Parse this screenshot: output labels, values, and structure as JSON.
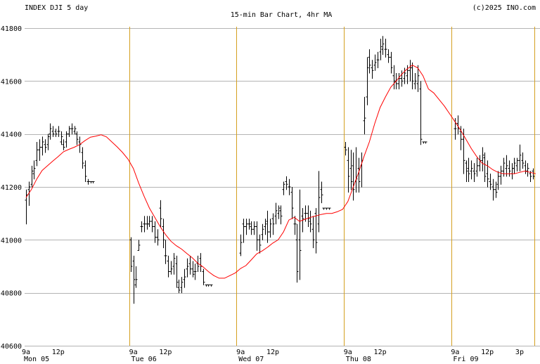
{
  "header": {
    "left": "INDEX DJI 5 day",
    "center": "15-min Bar Chart, 4hr MA",
    "right": "(c)2025 INO.com"
  },
  "colors": {
    "background": "#ffffff",
    "grid": "#b4b4b4",
    "day_separator": "#d4a020",
    "bars": "#000000",
    "moving_average": "#ff0000"
  },
  "chart_data": {
    "type": "bar",
    "subtype": "ohlc",
    "interval": "15-min",
    "ylim": [
      40600,
      41800
    ],
    "y_ticks": [
      40600,
      40800,
      41000,
      41200,
      41400,
      41600,
      41800
    ],
    "grid": true,
    "x_ticks": [
      {
        "label": "9a",
        "day": "Mon 05",
        "pos": 0
      },
      {
        "label": "12p",
        "day": "",
        "pos": 12
      },
      {
        "label": "9a",
        "day": "Tue 06",
        "pos": 40
      },
      {
        "label": "12p",
        "day": "",
        "pos": 52
      },
      {
        "label": "9a",
        "day": "Wed 07",
        "pos": 80
      },
      {
        "label": "12p",
        "day": "",
        "pos": 92
      },
      {
        "label": "9a",
        "day": "Thu 08",
        "pos": 120
      },
      {
        "label": "12p",
        "day": "",
        "pos": 132
      },
      {
        "label": "9a",
        "day": "Fri 09",
        "pos": 160
      },
      {
        "label": "12p",
        "day": "",
        "pos": 172
      },
      {
        "label": "3p",
        "day": "",
        "pos": 184
      }
    ],
    "day_separators": [
      38.5,
      78.5,
      118.5,
      158.5,
      189.5
    ],
    "ohlc": [
      [
        0,
        41150,
        41190,
        41060,
        41170
      ],
      [
        1,
        41190,
        41220,
        41130,
        41200
      ],
      [
        2,
        41210,
        41280,
        41200,
        41260
      ],
      [
        3,
        41250,
        41300,
        41230,
        41270
      ],
      [
        4,
        41300,
        41370,
        41280,
        41340
      ],
      [
        5,
        41340,
        41380,
        41300,
        41350
      ],
      [
        6,
        41350,
        41390,
        41320,
        41370
      ],
      [
        7,
        41360,
        41380,
        41330,
        41350
      ],
      [
        8,
        41360,
        41400,
        41340,
        41390
      ],
      [
        9,
        41400,
        41440,
        41380,
        41420
      ],
      [
        10,
        41410,
        41430,
        41390,
        41400
      ],
      [
        11,
        41410,
        41420,
        41390,
        41400
      ],
      [
        12,
        41410,
        41430,
        41390,
        41410
      ],
      [
        13,
        41370,
        41410,
        41360,
        41390
      ],
      [
        14,
        41360,
        41380,
        41340,
        41350
      ],
      [
        15,
        41370,
        41410,
        41350,
        41400
      ],
      [
        16,
        41400,
        41430,
        41390,
        41420
      ],
      [
        17,
        41420,
        41440,
        41400,
        41420
      ],
      [
        18,
        41410,
        41430,
        41400,
        41420
      ],
      [
        19,
        41400,
        41410,
        41360,
        41380
      ],
      [
        20,
        41370,
        41390,
        41330,
        41360
      ],
      [
        21,
        41330,
        41350,
        41270,
        41290
      ],
      [
        22,
        41280,
        41300,
        41220,
        41240
      ],
      [
        23,
        41220,
        41230,
        41210,
        41220
      ],
      [
        24,
        41220,
        41220,
        41215,
        41220
      ],
      [
        25,
        41220,
        41220,
        41215,
        41220
      ],
      [
        39,
        41000,
        41010,
        40880,
        40900
      ],
      [
        40,
        40920,
        40940,
        40760,
        40850
      ],
      [
        41,
        40830,
        40900,
        40820,
        40850
      ],
      [
        42,
        40960,
        41000,
        40960,
        40980
      ],
      [
        43,
        41050,
        41070,
        41030,
        41050
      ],
      [
        44,
        41060,
        41090,
        41030,
        41060
      ],
      [
        45,
        41060,
        41090,
        41040,
        41060
      ],
      [
        46,
        41060,
        41090,
        41050,
        41070
      ],
      [
        47,
        41070,
        41090,
        41030,
        41050
      ],
      [
        48,
        41050,
        41070,
        40990,
        41010
      ],
      [
        49,
        41010,
        41040,
        40980,
        41000
      ],
      [
        50,
        41120,
        41150,
        41050,
        41080
      ],
      [
        51,
        41050,
        41080,
        40970,
        41000
      ],
      [
        52,
        40940,
        41000,
        40910,
        40940
      ],
      [
        53,
        40920,
        40940,
        40860,
        40880
      ],
      [
        54,
        40880,
        40920,
        40870,
        40890
      ],
      [
        55,
        40900,
        40950,
        40870,
        40930
      ],
      [
        56,
        40910,
        40940,
        40820,
        40840
      ],
      [
        57,
        40820,
        40850,
        40800,
        40810
      ],
      [
        58,
        40820,
        40860,
        40800,
        40840
      ],
      [
        59,
        40850,
        40890,
        40820,
        40860
      ],
      [
        60,
        40890,
        40930,
        40860,
        40900
      ],
      [
        61,
        40910,
        40940,
        40870,
        40890
      ],
      [
        62,
        40890,
        40920,
        40860,
        40870
      ],
      [
        63,
        40880,
        40910,
        40850,
        40880
      ],
      [
        64,
        40910,
        40940,
        40880,
        40900
      ],
      [
        65,
        40930,
        40950,
        40880,
        40900
      ],
      [
        66,
        40880,
        40890,
        40830,
        40840
      ],
      [
        67,
        40830,
        40830,
        40825,
        40830
      ],
      [
        68,
        40830,
        40830,
        40825,
        40830
      ],
      [
        69,
        40830,
        40830,
        40825,
        40830
      ],
      [
        80,
        40950,
        41020,
        40940,
        40990
      ],
      [
        81,
        41060,
        41080,
        40990,
        41050
      ],
      [
        82,
        41050,
        41080,
        41020,
        41060
      ],
      [
        83,
        41060,
        41080,
        41040,
        41060
      ],
      [
        84,
        41050,
        41070,
        41020,
        41040
      ],
      [
        85,
        41040,
        41070,
        41020,
        41050
      ],
      [
        86,
        41050,
        41070,
        40960,
        41000
      ],
      [
        87,
        41000,
        41020,
        40950,
        40980
      ],
      [
        88,
        41020,
        41060,
        41000,
        41040
      ],
      [
        89,
        41050,
        41080,
        41020,
        41060
      ],
      [
        90,
        41070,
        41110,
        40990,
        41030
      ],
      [
        91,
        41030,
        41080,
        41010,
        41060
      ],
      [
        92,
        41080,
        41100,
        41020,
        41060
      ],
      [
        93,
        41090,
        41140,
        41060,
        41110
      ],
      [
        94,
        41100,
        41130,
        41080,
        41120
      ],
      [
        95,
        41110,
        41130,
        41060,
        41090
      ],
      [
        96,
        41190,
        41220,
        41170,
        41210
      ],
      [
        97,
        41220,
        41240,
        41190,
        41210
      ],
      [
        98,
        41200,
        41230,
        41170,
        41200
      ],
      [
        99,
        41180,
        41200,
        41080,
        41120
      ],
      [
        100,
        41060,
        41090,
        41020,
        41060
      ],
      [
        101,
        41000,
        41060,
        40840,
        40880
      ],
      [
        102,
        41000,
        41190,
        40850,
        40960
      ],
      [
        103,
        41090,
        41120,
        41030,
        41080
      ],
      [
        104,
        41100,
        41130,
        41070,
        41100
      ],
      [
        105,
        41100,
        41130,
        41050,
        41080
      ],
      [
        106,
        41070,
        41110,
        41030,
        41060
      ],
      [
        107,
        41040,
        41090,
        40970,
        41000
      ],
      [
        108,
        41100,
        41120,
        40950,
        40990
      ],
      [
        109,
        41060,
        41260,
        41030,
        41160
      ],
      [
        110,
        41190,
        41220,
        41140,
        41170
      ],
      [
        111,
        41120,
        41120,
        41115,
        41120
      ],
      [
        112,
        41120,
        41120,
        41115,
        41120
      ],
      [
        113,
        41120,
        41120,
        41115,
        41120
      ],
      [
        119,
        41350,
        41370,
        41320,
        41340
      ],
      [
        120,
        41300,
        41350,
        41180,
        41240
      ],
      [
        121,
        41270,
        41340,
        41190,
        41220
      ],
      [
        122,
        41280,
        41330,
        41150,
        41190
      ],
      [
        123,
        41220,
        41350,
        41180,
        41230
      ],
      [
        124,
        41270,
        41310,
        41180,
        41220
      ],
      [
        125,
        41280,
        41330,
        41200,
        41300
      ],
      [
        126,
        41450,
        41540,
        41400,
        41460
      ],
      [
        127,
        41540,
        41690,
        41510,
        41650
      ],
      [
        128,
        41690,
        41720,
        41630,
        41660
      ],
      [
        129,
        41650,
        41680,
        41610,
        41640
      ],
      [
        130,
        41660,
        41700,
        41640,
        41670
      ],
      [
        131,
        41680,
        41710,
        41650,
        41680
      ],
      [
        132,
        41710,
        41760,
        41680,
        41730
      ],
      [
        133,
        41720,
        41770,
        41700,
        41740
      ],
      [
        134,
        41720,
        41760,
        41690,
        41720
      ],
      [
        135,
        41700,
        41720,
        41670,
        41690
      ],
      [
        136,
        41690,
        41710,
        41630,
        41650
      ],
      [
        137,
        41620,
        41660,
        41570,
        41600
      ],
      [
        138,
        41600,
        41630,
        41570,
        41590
      ],
      [
        139,
        41590,
        41630,
        41570,
        41610
      ],
      [
        140,
        41610,
        41640,
        41580,
        41600
      ],
      [
        141,
        41610,
        41650,
        41590,
        41630
      ],
      [
        142,
        41620,
        41660,
        41590,
        41640
      ],
      [
        143,
        41640,
        41680,
        41600,
        41650
      ],
      [
        144,
        41650,
        41670,
        41570,
        41600
      ],
      [
        145,
        41590,
        41630,
        41570,
        41600
      ],
      [
        146,
        41590,
        41660,
        41560,
        41620
      ],
      [
        147,
        41570,
        41600,
        41360,
        41380
      ],
      [
        148,
        41370,
        41370,
        41365,
        41370
      ],
      [
        149,
        41370,
        41370,
        41365,
        41370
      ],
      [
        160,
        41420,
        41460,
        41380,
        41420
      ],
      [
        161,
        41440,
        41470,
        41400,
        41420
      ],
      [
        162,
        41410,
        41430,
        41340,
        41380
      ],
      [
        163,
        41380,
        41420,
        41250,
        41300
      ],
      [
        164,
        41290,
        41300,
        41220,
        41260
      ],
      [
        165,
        41270,
        41310,
        41220,
        41250
      ],
      [
        166,
        41260,
        41300,
        41230,
        41270
      ],
      [
        167,
        41260,
        41290,
        41220,
        41250
      ],
      [
        168,
        41260,
        41310,
        41240,
        41280
      ],
      [
        169,
        41280,
        41320,
        41260,
        41300
      ],
      [
        170,
        41300,
        41350,
        41260,
        41320
      ],
      [
        171,
        41310,
        41330,
        41220,
        41240
      ],
      [
        172,
        41250,
        41300,
        41200,
        41230
      ],
      [
        173,
        41220,
        41250,
        41190,
        41210
      ],
      [
        174,
        41200,
        41230,
        41150,
        41190
      ],
      [
        175,
        41190,
        41220,
        41160,
        41180
      ],
      [
        176,
        41210,
        41260,
        41190,
        41240
      ],
      [
        177,
        41240,
        41280,
        41210,
        41260
      ],
      [
        178,
        41260,
        41310,
        41240,
        41290
      ],
      [
        179,
        41270,
        41320,
        41240,
        41280
      ],
      [
        180,
        41270,
        41300,
        41240,
        41260
      ],
      [
        181,
        41250,
        41290,
        41230,
        41270
      ],
      [
        182,
        41270,
        41310,
        41250,
        41290
      ],
      [
        183,
        41280,
        41310,
        41260,
        41300
      ],
      [
        184,
        41300,
        41360,
        41260,
        41320
      ],
      [
        185,
        41300,
        41330,
        41270,
        41290
      ],
      [
        186,
        41280,
        41300,
        41250,
        41260
      ],
      [
        187,
        41260,
        41290,
        41240,
        41270
      ],
      [
        188,
        41250,
        41260,
        41220,
        41240
      ],
      [
        189,
        41260,
        41270,
        41230,
        41240
      ]
    ],
    "moving_average": [
      [
        0,
        41160
      ],
      [
        2,
        41190
      ],
      [
        4,
        41230
      ],
      [
        6,
        41262
      ],
      [
        8,
        41280
      ],
      [
        10,
        41298
      ],
      [
        12,
        41315
      ],
      [
        14,
        41333
      ],
      [
        16,
        41342
      ],
      [
        18,
        41350
      ],
      [
        20,
        41360
      ],
      [
        22,
        41375
      ],
      [
        24,
        41388
      ],
      [
        26,
        41392
      ],
      [
        28,
        41397
      ],
      [
        30,
        41389
      ],
      [
        32,
        41370
      ],
      [
        34,
        41351
      ],
      [
        36,
        41330
      ],
      [
        38,
        41305
      ],
      [
        40,
        41270
      ],
      [
        42,
        41215
      ],
      [
        44,
        41165
      ],
      [
        46,
        41120
      ],
      [
        48,
        41085
      ],
      [
        50,
        41050
      ],
      [
        52,
        41020
      ],
      [
        54,
        40995
      ],
      [
        56,
        40978
      ],
      [
        58,
        40965
      ],
      [
        60,
        40948
      ],
      [
        62,
        40932
      ],
      [
        64,
        40912
      ],
      [
        66,
        40898
      ],
      [
        68,
        40880
      ],
      [
        70,
        40865
      ],
      [
        72,
        40855
      ],
      [
        74,
        40855
      ],
      [
        76,
        40865
      ],
      [
        78,
        40875
      ],
      [
        80,
        40892
      ],
      [
        82,
        40903
      ],
      [
        84,
        40925
      ],
      [
        86,
        40947
      ],
      [
        88,
        40958
      ],
      [
        90,
        40972
      ],
      [
        92,
        40988
      ],
      [
        94,
        41000
      ],
      [
        96,
        41030
      ],
      [
        98,
        41075
      ],
      [
        100,
        41085
      ],
      [
        102,
        41070
      ],
      [
        104,
        41078
      ],
      [
        106,
        41085
      ],
      [
        108,
        41090
      ],
      [
        110,
        41096
      ],
      [
        112,
        41100
      ],
      [
        114,
        41100
      ],
      [
        116,
        41106
      ],
      [
        118,
        41115
      ],
      [
        120,
        41145
      ],
      [
        122,
        41200
      ],
      [
        124,
        41255
      ],
      [
        126,
        41315
      ],
      [
        128,
        41370
      ],
      [
        130,
        41440
      ],
      [
        132,
        41500
      ],
      [
        134,
        41540
      ],
      [
        136,
        41577
      ],
      [
        138,
        41600
      ],
      [
        140,
        41625
      ],
      [
        142,
        41645
      ],
      [
        144,
        41660
      ],
      [
        146,
        41650
      ],
      [
        148,
        41620
      ],
      [
        150,
        41570
      ],
      [
        152,
        41555
      ],
      [
        154,
        41530
      ],
      [
        156,
        41505
      ],
      [
        158,
        41475
      ],
      [
        160,
        41445
      ],
      [
        162,
        41415
      ],
      [
        164,
        41380
      ],
      [
        166,
        41345
      ],
      [
        168,
        41315
      ],
      [
        170,
        41290
      ],
      [
        172,
        41280
      ],
      [
        174,
        41265
      ],
      [
        176,
        41255
      ],
      [
        178,
        41250
      ],
      [
        180,
        41250
      ],
      [
        182,
        41250
      ],
      [
        184,
        41255
      ],
      [
        186,
        41260
      ],
      [
        188,
        41255
      ],
      [
        190,
        41250
      ]
    ]
  }
}
